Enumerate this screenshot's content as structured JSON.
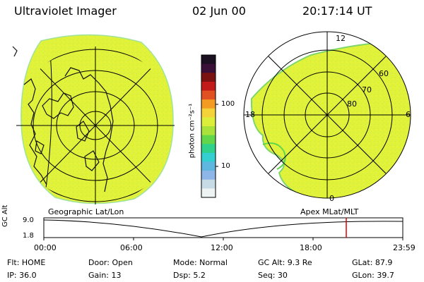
{
  "header": {
    "title": "Ultraviolet Imager",
    "date": "02 Jun 00",
    "time": "20:17:14 UT"
  },
  "colorbar": {
    "unit_label": "photon cm⁻²s⁻¹",
    "ticks": [
      "100",
      "10"
    ],
    "scale": "log",
    "colors": [
      "#1b0f22",
      "#3a1038",
      "#7a1212",
      "#c21a1a",
      "#e05020",
      "#f39b22",
      "#f4d33a",
      "#dcee3a",
      "#a8e23a",
      "#62d64a",
      "#2fd18b",
      "#34cfd0",
      "#5fb7e0",
      "#8fb6e8",
      "#c7dbe6",
      "#eef3f3"
    ]
  },
  "left_panel": {
    "caption": "Geographic Lat/Lon",
    "fill_color": "#e1f23a"
  },
  "right_panel": {
    "caption": "Apex MLat/MLT",
    "fill_color": "#e1f23a",
    "mlt_labels": {
      "top": "12",
      "left": "18",
      "right": "6",
      "bottom": "0"
    },
    "lat_labels": [
      "60",
      "70",
      "80"
    ]
  },
  "timeline": {
    "ylabel": "GC Alt",
    "yticks": [
      "9.0",
      "1.8"
    ],
    "xticks": [
      "00:00",
      "06:00",
      "12:00",
      "18:00",
      "23:59"
    ],
    "marker_time": "20:17",
    "marker_color": "#e00000"
  },
  "status": {
    "flt": "Flt: HOME",
    "door": "Door: Open",
    "mode": "Mode: Normal",
    "gcalt": "GC Alt: 9.3 Re",
    "glat": "GLat:  87.9",
    "ip": "IP: 36.0",
    "gain": "Gain: 13",
    "dsp": "Dsp:     5.2",
    "seq": "Seq: 30",
    "glon": "GLon:  39.7"
  }
}
